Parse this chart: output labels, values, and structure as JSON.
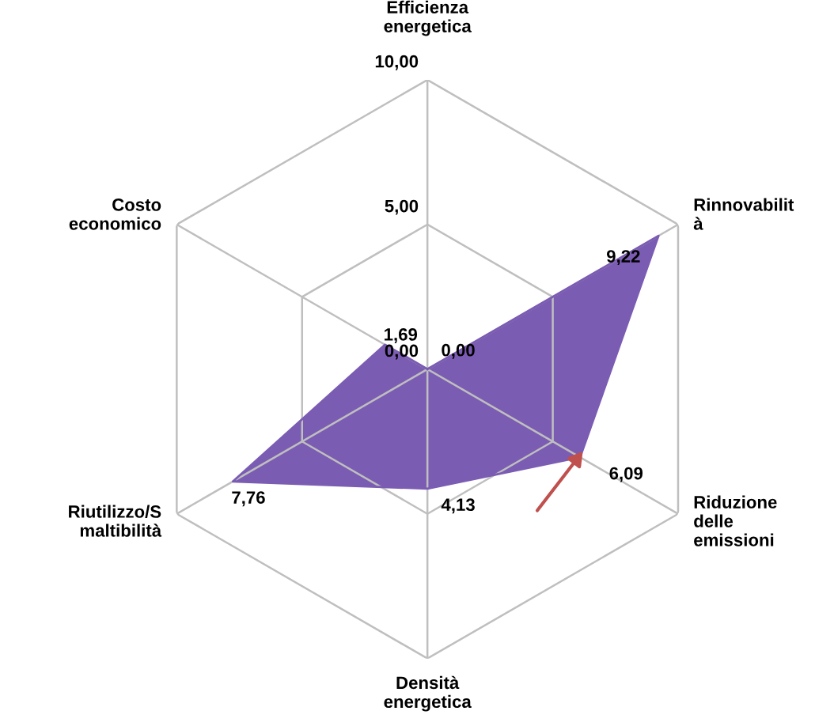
{
  "chart_data": {
    "type": "radar",
    "categories": [
      "Efficienza\nenergetica",
      "Rinnovabilit\nà",
      "Riduzione\ndelle\nemissioni",
      "Densità\nenergetica",
      "Riutilizzo/S\nmaltibilità",
      "Costo\neconomico"
    ],
    "series": [
      {
        "color": "#7b5cb3",
        "values": [
          0.0,
          9.22,
          6.09,
          4.13,
          7.76,
          1.69
        ],
        "value_labels": [
          "0,00",
          "9,22",
          "6,09",
          "4,13",
          "7,76",
          "1,69"
        ]
      }
    ],
    "ylim": [
      0,
      10
    ],
    "yticks": [
      {
        "value": 0,
        "label": "0,00"
      },
      {
        "value": 5,
        "label": "5,00"
      },
      {
        "value": 10,
        "label": "10,00"
      }
    ],
    "grid": true
  }
}
